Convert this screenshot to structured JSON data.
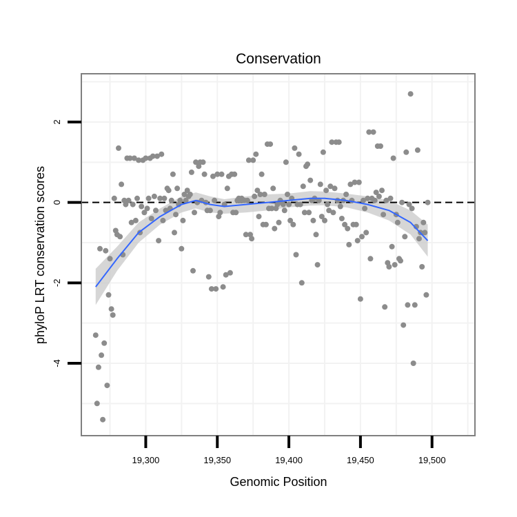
{
  "chart_data": {
    "type": "scatter",
    "title": "Conservation",
    "xlabel": "Genomic Position",
    "ylabel": "phyloP LRT conservation scores",
    "xlim": [
      19255,
      19530
    ],
    "ylim": [
      -5.8,
      3.2
    ],
    "x_ticks": [
      19300,
      19350,
      19400,
      19450,
      19500
    ],
    "x_tick_labels": [
      "19,300",
      "19,350",
      "19,400",
      "19,450",
      "19,500"
    ],
    "y_ticks": [
      -4,
      -2,
      0,
      2
    ],
    "y_tick_labels": [
      "-4",
      "-2",
      "0",
      "2"
    ],
    "reference_line": {
      "y": 0,
      "style": "dashed"
    },
    "grid": true,
    "colors": {
      "points": "#8c8c8c",
      "smooth": "#3366ff",
      "band": "#c8c8c8",
      "panel_border": "#7f7f7f",
      "grid": "#f2f2f2"
    },
    "points": [
      [
        19265,
        -3.3
      ],
      [
        19266,
        -5.0
      ],
      [
        19267,
        -4.1
      ],
      [
        19268,
        -1.15
      ],
      [
        19269,
        -3.8
      ],
      [
        19270,
        -5.4
      ],
      [
        19271,
        -3.5
      ],
      [
        19272,
        -1.2
      ],
      [
        19273,
        -4.55
      ],
      [
        19274,
        -2.3
      ],
      [
        19275,
        -1.4
      ],
      [
        19276,
        -2.65
      ],
      [
        19277,
        -2.8
      ],
      [
        19278,
        0.1
      ],
      [
        19279,
        -0.7
      ],
      [
        19280,
        -0.8
      ],
      [
        19281,
        1.35
      ],
      [
        19282,
        -0.85
      ],
      [
        19283,
        0.45
      ],
      [
        19284,
        -1.3
      ],
      [
        19285,
        0.05
      ],
      [
        19286,
        -0.05
      ],
      [
        19287,
        1.1
      ],
      [
        19288,
        0.05
      ],
      [
        19289,
        1.1
      ],
      [
        19290,
        -0.5
      ],
      [
        19291,
        -0.05
      ],
      [
        19292,
        1.1
      ],
      [
        19293,
        -0.45
      ],
      [
        19294,
        0.1
      ],
      [
        19295,
        1.05
      ],
      [
        19296,
        -0.75
      ],
      [
        19297,
        -0.1
      ],
      [
        19298,
        1.05
      ],
      [
        19299,
        -0.25
      ],
      [
        19300,
        1.1
      ],
      [
        19301,
        -0.15
      ],
      [
        19302,
        0.1
      ],
      [
        19303,
        1.1
      ],
      [
        19304,
        -0.4
      ],
      [
        19305,
        1.15
      ],
      [
        19306,
        0.15
      ],
      [
        19307,
        -0.2
      ],
      [
        19308,
        1.15
      ],
      [
        19309,
        -0.95
      ],
      [
        19310,
        0.1
      ],
      [
        19311,
        1.2
      ],
      [
        19312,
        -0.45
      ],
      [
        19313,
        0.1
      ],
      [
        19314,
        -0.2
      ],
      [
        19315,
        0.35
      ],
      [
        19316,
        0.3
      ],
      [
        19317,
        -0.15
      ],
      [
        19318,
        0.05
      ],
      [
        19319,
        0.7
      ],
      [
        19320,
        -0.75
      ],
      [
        19321,
        -0.3
      ],
      [
        19322,
        0.35
      ],
      [
        19323,
        -0.05
      ],
      [
        19324,
        0.05
      ],
      [
        19325,
        -1.15
      ],
      [
        19326,
        -0.45
      ],
      [
        19327,
        0.2
      ],
      [
        19328,
        0.05
      ],
      [
        19329,
        0.3
      ],
      [
        19330,
        0.15
      ],
      [
        19331,
        0.2
      ],
      [
        19332,
        0.75
      ],
      [
        19333,
        -1.7
      ],
      [
        19334,
        -0.25
      ],
      [
        19335,
        1.0
      ],
      [
        19336,
        0.0
      ],
      [
        19337,
        0.9
      ],
      [
        19338,
        1.0
      ],
      [
        19339,
        0.05
      ],
      [
        19340,
        1.0
      ],
      [
        19341,
        0.7
      ],
      [
        19342,
        0.0
      ],
      [
        19343,
        -0.2
      ],
      [
        19344,
        -1.85
      ],
      [
        19345,
        -0.2
      ],
      [
        19346,
        -2.15
      ],
      [
        19347,
        0.65
      ],
      [
        19348,
        0.05
      ],
      [
        19349,
        -2.15
      ],
      [
        19350,
        0.7
      ],
      [
        19351,
        -0.35
      ],
      [
        19352,
        -0.25
      ],
      [
        19353,
        0.7
      ],
      [
        19354,
        -2.1
      ],
      [
        19355,
        -0.05
      ],
      [
        19356,
        -1.8
      ],
      [
        19357,
        0.35
      ],
      [
        19358,
        0.65
      ],
      [
        19359,
        -1.75
      ],
      [
        19360,
        0.7
      ],
      [
        19361,
        -0.25
      ],
      [
        19362,
        0.7
      ],
      [
        19363,
        -0.25
      ],
      [
        19364,
        0.05
      ],
      [
        19365,
        0.1
      ],
      [
        19366,
        0.05
      ],
      [
        19367,
        0.1
      ],
      [
        19368,
        0.05
      ],
      [
        19369,
        0.05
      ],
      [
        19370,
        -0.8
      ],
      [
        19371,
        0.05
      ],
      [
        19372,
        1.05
      ],
      [
        19373,
        -0.8
      ],
      [
        19374,
        -0.9
      ],
      [
        19375,
        1.05
      ],
      [
        19376,
        0.15
      ],
      [
        19377,
        1.2
      ],
      [
        19378,
        0.3
      ],
      [
        19379,
        -0.35
      ],
      [
        19380,
        0.2
      ],
      [
        19381,
        0.7
      ],
      [
        19382,
        -0.55
      ],
      [
        19383,
        0.2
      ],
      [
        19384,
        -0.55
      ],
      [
        19385,
        1.45
      ],
      [
        19386,
        -0.15
      ],
      [
        19387,
        1.45
      ],
      [
        19388,
        -0.15
      ],
      [
        19389,
        0.35
      ],
      [
        19390,
        -0.65
      ],
      [
        19391,
        -0.15
      ],
      [
        19392,
        -0.05
      ],
      [
        19393,
        -0.5
      ],
      [
        19394,
        0.05
      ],
      [
        19395,
        0.0
      ],
      [
        19396,
        -0.05
      ],
      [
        19397,
        -0.2
      ],
      [
        19398,
        1.0
      ],
      [
        19399,
        0.2
      ],
      [
        19400,
        -0.05
      ],
      [
        19401,
        -0.45
      ],
      [
        19402,
        0.1
      ],
      [
        19403,
        -0.55
      ],
      [
        19404,
        1.35
      ],
      [
        19405,
        -1.3
      ],
      [
        19406,
        -0.05
      ],
      [
        19407,
        1.2
      ],
      [
        19408,
        -0.05
      ],
      [
        19409,
        -2.0
      ],
      [
        19410,
        0.4
      ],
      [
        19411,
        -0.25
      ],
      [
        19412,
        0.9
      ],
      [
        19413,
        0.95
      ],
      [
        19414,
        -0.25
      ],
      [
        19415,
        0.55
      ],
      [
        19416,
        0.05
      ],
      [
        19417,
        -0.45
      ],
      [
        19418,
        0.1
      ],
      [
        19419,
        -0.8
      ],
      [
        19420,
        -1.55
      ],
      [
        19421,
        0.05
      ],
      [
        19422,
        0.45
      ],
      [
        19423,
        -0.35
      ],
      [
        19424,
        1.25
      ],
      [
        19425,
        -0.45
      ],
      [
        19426,
        0.3
      ],
      [
        19427,
        -0.05
      ],
      [
        19428,
        -0.2
      ],
      [
        19429,
        0.4
      ],
      [
        19430,
        1.5
      ],
      [
        19431,
        -0.25
      ],
      [
        19432,
        0.35
      ],
      [
        19433,
        1.5
      ],
      [
        19434,
        0.05
      ],
      [
        19435,
        1.5
      ],
      [
        19436,
        -0.1
      ],
      [
        19437,
        -0.4
      ],
      [
        19438,
        0.05
      ],
      [
        19439,
        -0.55
      ],
      [
        19440,
        0.2
      ],
      [
        19441,
        -0.65
      ],
      [
        19442,
        -1.05
      ],
      [
        19443,
        0.45
      ],
      [
        19444,
        0.05
      ],
      [
        19445,
        -0.55
      ],
      [
        19446,
        0.5
      ],
      [
        19447,
        -0.55
      ],
      [
        19448,
        -0.95
      ],
      [
        19449,
        0.5
      ],
      [
        19450,
        -2.4
      ],
      [
        19451,
        -0.85
      ],
      [
        19452,
        0.05
      ],
      [
        19453,
        -0.15
      ],
      [
        19454,
        -0.75
      ],
      [
        19455,
        0.1
      ],
      [
        19456,
        1.75
      ],
      [
        19457,
        -1.4
      ],
      [
        19458,
        0.1
      ],
      [
        19459,
        1.75
      ],
      [
        19460,
        0.05
      ],
      [
        19461,
        0.25
      ],
      [
        19462,
        1.4
      ],
      [
        19463,
        0.15
      ],
      [
        19464,
        1.4
      ],
      [
        19465,
        0.3
      ],
      [
        19466,
        -0.3
      ],
      [
        19467,
        -2.6
      ],
      [
        19468,
        0.05
      ],
      [
        19469,
        -1.5
      ],
      [
        19470,
        -1.6
      ],
      [
        19471,
        0.1
      ],
      [
        19472,
        -1.1
      ],
      [
        19473,
        1.1
      ],
      [
        19474,
        -1.55
      ],
      [
        19475,
        -0.3
      ],
      [
        19476,
        -0.5
      ],
      [
        19477,
        -1.4
      ],
      [
        19478,
        -1.45
      ],
      [
        19479,
        0.0
      ],
      [
        19480,
        -3.05
      ],
      [
        19481,
        -0.85
      ],
      [
        19482,
        1.25
      ],
      [
        19483,
        -2.55
      ],
      [
        19484,
        -0.05
      ],
      [
        19485,
        2.7
      ],
      [
        19486,
        -0.15
      ],
      [
        19487,
        -4.0
      ],
      [
        19488,
        -2.55
      ],
      [
        19489,
        -0.6
      ],
      [
        19490,
        1.3
      ],
      [
        19491,
        -0.9
      ],
      [
        19492,
        -0.75
      ],
      [
        19493,
        -1.6
      ],
      [
        19494,
        -0.5
      ],
      [
        19495,
        -0.75
      ],
      [
        19496,
        -2.3
      ],
      [
        19497,
        0.0
      ]
    ],
    "smooth_line": {
      "x": [
        19265,
        19280,
        19295,
        19310,
        19325,
        19335,
        19345,
        19355,
        19370,
        19385,
        19400,
        19415,
        19425,
        19440,
        19455,
        19470,
        19485,
        19497
      ],
      "y": [
        -2.1,
        -1.4,
        -0.75,
        -0.35,
        -0.05,
        0.05,
        -0.05,
        -0.1,
        -0.05,
        0.0,
        0.05,
        0.1,
        0.1,
        0.05,
        -0.05,
        -0.2,
        -0.5,
        -0.95
      ]
    },
    "confidence_band": {
      "upper": [
        -1.65,
        -1.1,
        -0.5,
        -0.15,
        0.15,
        0.25,
        0.15,
        0.08,
        0.15,
        0.2,
        0.22,
        0.28,
        0.27,
        0.22,
        0.15,
        0.05,
        -0.2,
        -0.55
      ],
      "lower": [
        -2.55,
        -1.7,
        -1.0,
        -0.55,
        -0.25,
        -0.15,
        -0.25,
        -0.28,
        -0.25,
        -0.2,
        -0.12,
        -0.08,
        -0.07,
        -0.12,
        -0.25,
        -0.45,
        -0.8,
        -1.35
      ]
    }
  }
}
